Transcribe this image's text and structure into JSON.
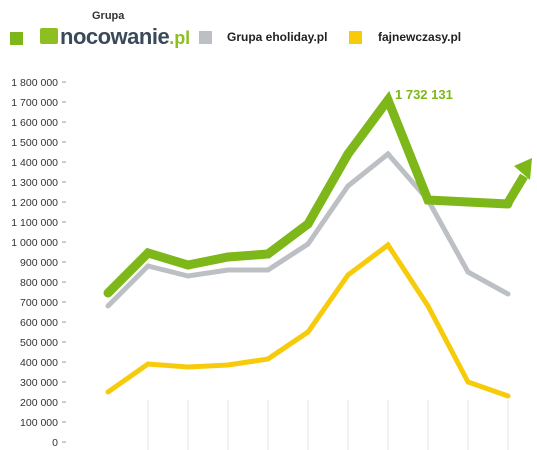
{
  "legend": {
    "items": [
      {
        "key": "nocowanie",
        "top_label": "Grupa",
        "logo_main": "nocowanie",
        "logo_tld": ".pl",
        "color": "#7db719"
      },
      {
        "key": "eholiday",
        "label": "Grupa eholiday.pl",
        "color": "#bcc0c4"
      },
      {
        "key": "fajne",
        "label": "fajnewczasy.pl",
        "color": "#f7cb0a"
      }
    ]
  },
  "annotation": {
    "text": "1 732 131",
    "color": "#7db719"
  },
  "chart_data": {
    "type": "line",
    "x": [
      1,
      2,
      3,
      4,
      5,
      6,
      7,
      8,
      9,
      10,
      11
    ],
    "ylim": [
      0,
      1800000
    ],
    "yticks": [
      0,
      100000,
      200000,
      300000,
      400000,
      500000,
      600000,
      700000,
      800000,
      900000,
      1000000,
      1100000,
      1200000,
      1300000,
      1400000,
      1500000,
      1600000,
      1700000,
      1800000
    ],
    "ytick_labels": [
      "0",
      "100 000",
      "200 000",
      "300 000",
      "400 000",
      "500 000",
      "600 000",
      "700 000",
      "800 000",
      "900 000",
      "1 000 000",
      "1 100 000",
      "1 200 000",
      "1 300 000",
      "1 400 000",
      "1 500 000",
      "1 600 000",
      "1 700 000",
      "1 800 000"
    ],
    "grid": "vertical",
    "series": [
      {
        "key": "eholiday",
        "color": "#bcc0c4",
        "values": [
          680000,
          880000,
          830000,
          860000,
          860000,
          990000,
          1280000,
          1440000,
          1210000,
          850000,
          740000
        ]
      },
      {
        "key": "fajne",
        "color": "#f7cb0a",
        "values": [
          250000,
          390000,
          375000,
          385000,
          415000,
          550000,
          835000,
          985000,
          680000,
          300000,
          230000
        ]
      },
      {
        "key": "nocowanie",
        "color": "#7db719",
        "values": [
          745000,
          945000,
          885000,
          925000,
          940000,
          1090000,
          1440000,
          1710000,
          1210000,
          1200000,
          1190000
        ],
        "arrow": true
      }
    ]
  }
}
